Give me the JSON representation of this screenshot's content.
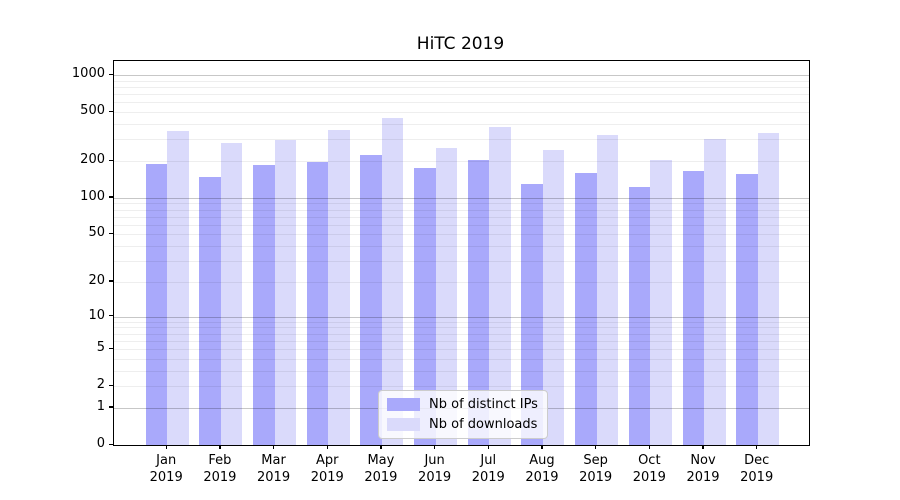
{
  "title": "HiTC 2019",
  "legend": {
    "items": [
      {
        "label": "Nb of distinct IPs",
        "color": "#a9a9fb"
      },
      {
        "label": "Nb of downloads",
        "color": "#dadafb"
      }
    ]
  },
  "chart_data": {
    "type": "bar",
    "title": "HiTC 2019",
    "categories": [
      "Jan 2019",
      "Feb 2019",
      "Mar 2019",
      "Apr 2019",
      "May 2019",
      "Jun 2019",
      "Jul 2019",
      "Aug 2019",
      "Sep 2019",
      "Oct 2019",
      "Nov 2019",
      "Dec 2019"
    ],
    "series": [
      {
        "name": "Nb of distinct IPs",
        "color": "#a9a9fb",
        "values": [
          188,
          148,
          184,
          196,
          224,
          175,
          203,
          129,
          161,
          122,
          166,
          157
        ]
      },
      {
        "name": "Nb of downloads",
        "color": "#dadafb",
        "values": [
          350,
          280,
          299,
          355,
          449,
          256,
          376,
          248,
          328,
          203,
          300,
          337
        ]
      }
    ],
    "xlabel": "",
    "ylabel": "",
    "yscale": "log1p",
    "yticks": [
      0,
      1,
      2,
      5,
      10,
      20,
      50,
      100,
      200,
      500,
      1000
    ],
    "ylim": [
      0,
      1300
    ],
    "grid": true,
    "grid_minor": true,
    "legend_position": "lower center"
  },
  "colors": {
    "grid_minor": "rgba(0,0,0,0.065)",
    "grid_major": "rgba(0,0,0,0.22)",
    "spine": "#000000"
  }
}
